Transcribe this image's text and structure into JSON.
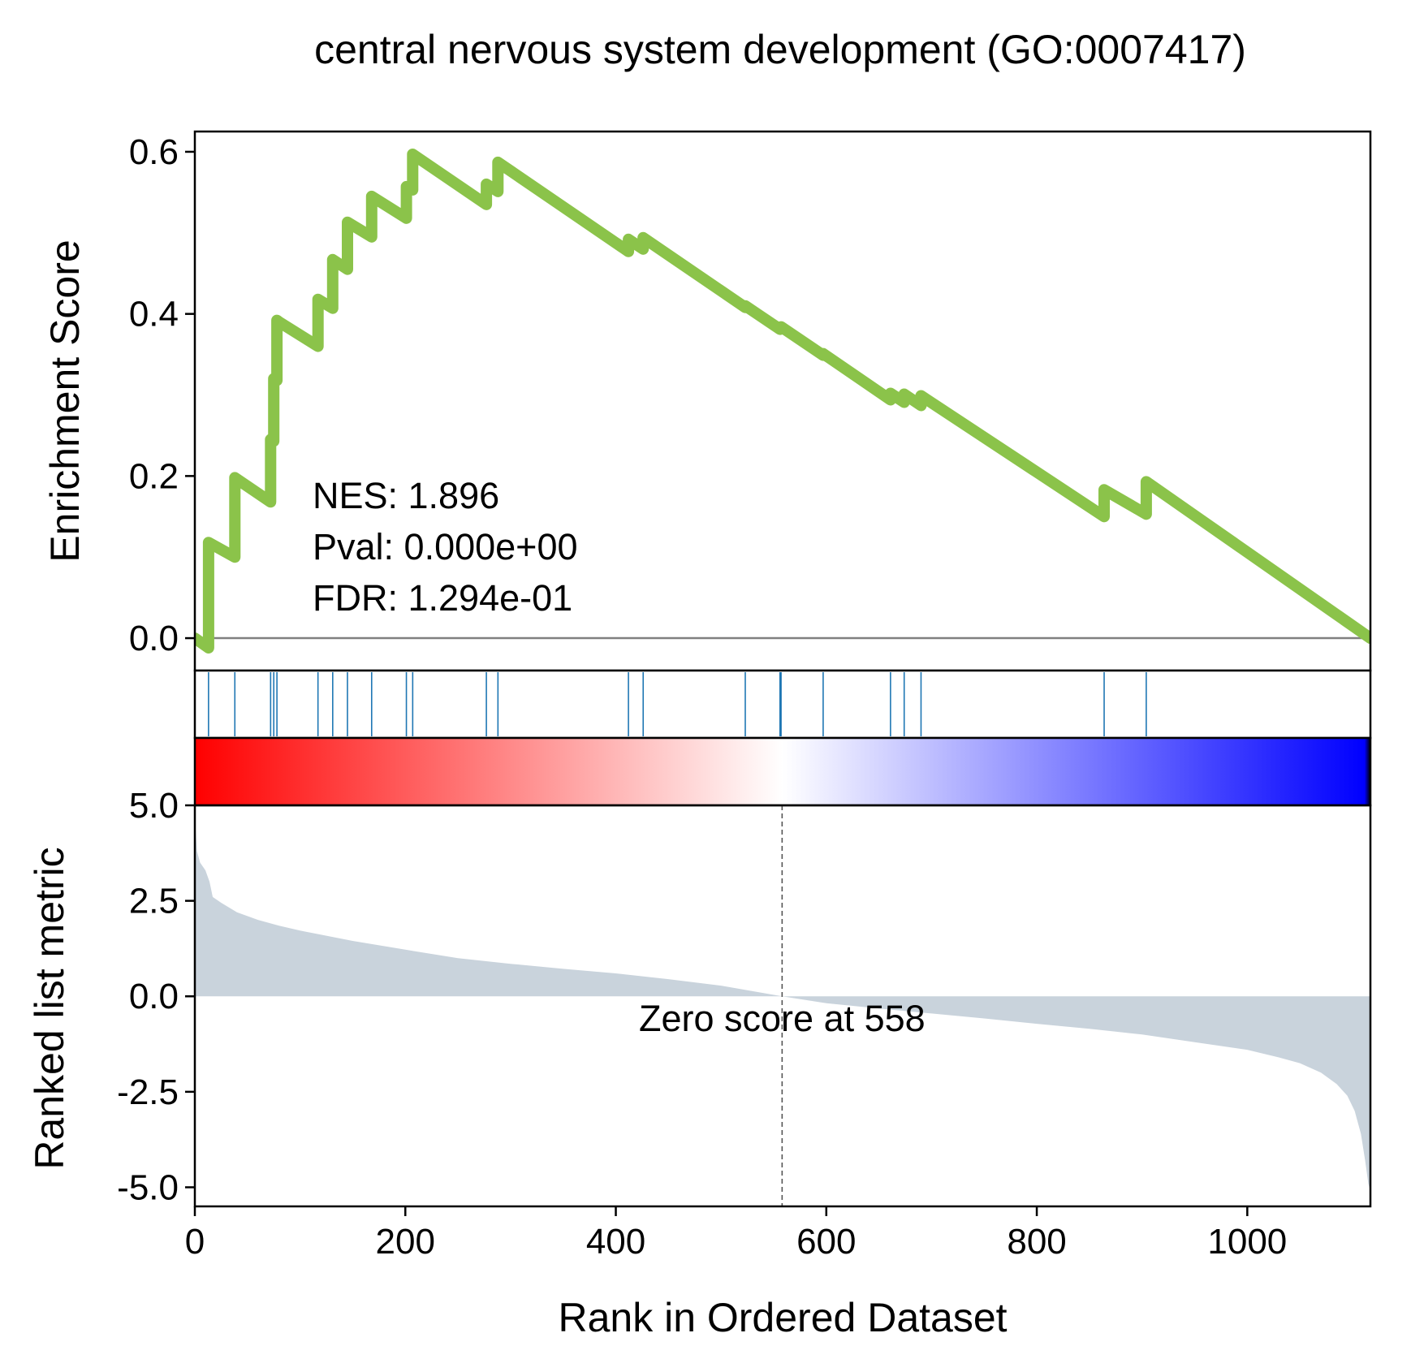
{
  "title": "central nervous system development (GO:0007417)",
  "chart_data": {
    "type": "line",
    "n_genes": 1117,
    "top_panel": {
      "ylabel": "Enrichment Score",
      "ylim": [
        -0.04,
        0.625
      ],
      "yticks": [
        0.0,
        0.2,
        0.4,
        0.6
      ],
      "ytick_labels": [
        "0.0",
        "0.2",
        "0.4",
        "0.6"
      ],
      "line_color": "#8bc34a",
      "baseline_color": "#808080",
      "series": [
        {
          "name": "Running enrichment score",
          "x": [
            0,
            13,
            13,
            38,
            38,
            72,
            72,
            75,
            75,
            78,
            78,
            80,
            80,
            117,
            117,
            131,
            131,
            145,
            145,
            168,
            168,
            201,
            201,
            207,
            207,
            277,
            277,
            288,
            288,
            412,
            412,
            426,
            426,
            523,
            523,
            556,
            556,
            557,
            557,
            597,
            597,
            661,
            661,
            674,
            674,
            690,
            690,
            864,
            864,
            904,
            904,
            1117
          ],
          "y": [
            0.0,
            -0.012,
            0.118,
            0.1,
            0.198,
            0.168,
            0.245,
            0.243,
            0.32,
            0.318,
            0.392,
            0.39,
            0.39,
            0.36,
            0.418,
            0.407,
            0.467,
            0.455,
            0.513,
            0.495,
            0.545,
            0.518,
            0.557,
            0.553,
            0.597,
            0.535,
            0.56,
            0.551,
            0.587,
            0.477,
            0.492,
            0.48,
            0.494,
            0.408,
            0.41,
            0.381,
            0.383,
            0.382,
            0.384,
            0.349,
            0.351,
            0.294,
            0.302,
            0.291,
            0.301,
            0.287,
            0.299,
            0.15,
            0.183,
            0.153,
            0.193,
            0.0
          ]
        }
      ],
      "stats": {
        "nes": "NES: 1.896",
        "pval": "Pval: 0.000e+00",
        "fdr": "FDR: 1.294e-01"
      }
    },
    "hits": {
      "color": "#1f77b4",
      "positions": [
        13,
        38,
        72,
        75,
        78,
        117,
        131,
        145,
        168,
        201,
        207,
        277,
        288,
        412,
        426,
        523,
        556,
        557,
        597,
        661,
        674,
        690,
        864,
        904
      ]
    },
    "colorbar": {
      "colors": [
        "#ff0000",
        "#ffffff",
        "#0000ff"
      ],
      "end_color": "#000000"
    },
    "bottom_panel": {
      "type": "area",
      "ylabel": "Ranked list metric",
      "ylim": [
        -5.5,
        5.0
      ],
      "yticks": [
        5.0,
        2.5,
        0.0,
        -2.5,
        -5.0
      ],
      "ytick_labels": [
        "5.0",
        "2.5",
        "0.0",
        "-2.5",
        "-5.0"
      ],
      "fill_color": "#c9d3dc",
      "zero_cross": 558,
      "zero_label": "Zero score at 558",
      "profile": {
        "x": [
          0,
          2,
          5,
          10,
          14,
          17,
          25,
          40,
          60,
          80,
          100,
          150,
          200,
          250,
          300,
          350,
          400,
          450,
          500,
          558,
          600,
          650,
          700,
          750,
          800,
          850,
          900,
          950,
          1000,
          1030,
          1050,
          1070,
          1085,
          1095,
          1102,
          1108,
          1112,
          1115,
          1117
        ],
        "y": [
          4.7,
          3.8,
          3.5,
          3.3,
          3.0,
          2.6,
          2.45,
          2.2,
          2.0,
          1.85,
          1.72,
          1.45,
          1.22,
          1.0,
          0.85,
          0.72,
          0.6,
          0.45,
          0.28,
          0.0,
          -0.18,
          -0.32,
          -0.45,
          -0.58,
          -0.72,
          -0.85,
          -1.0,
          -1.2,
          -1.4,
          -1.6,
          -1.75,
          -2.0,
          -2.3,
          -2.6,
          -3.0,
          -3.6,
          -4.3,
          -4.9,
          -5.1
        ]
      }
    },
    "xlabel": "Rank in Ordered Dataset",
    "xlim": [
      0,
      1117
    ],
    "xticks": [
      0,
      200,
      400,
      600,
      800,
      1000
    ],
    "xtick_labels": [
      "0",
      "200",
      "400",
      "600",
      "800",
      "1000"
    ]
  }
}
